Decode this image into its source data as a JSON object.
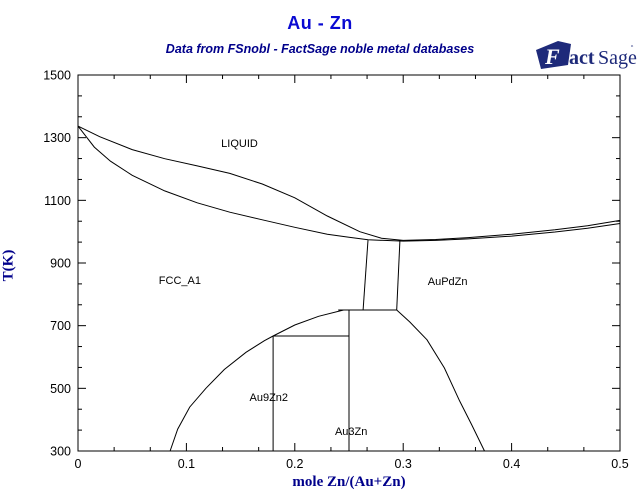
{
  "header": {
    "title": "Au - Zn",
    "subtitle": "Data from FSnobl - FactSage noble metal databases",
    "logo": {
      "f": "F",
      "act": "act",
      "sage": "Sage",
      "tm": "™"
    }
  },
  "colors": {
    "title_blue": "#0a0ad2",
    "navy": "#00008b",
    "logo_navy": "#1e2a7a",
    "line_black": "#000000"
  },
  "chart_data": {
    "type": "line",
    "title": "Au - Zn",
    "xlabel": "mole Zn/(Au+Zn)",
    "ylabel": "T(K)",
    "xlim": [
      0,
      0.5
    ],
    "ylim": [
      300,
      1500
    ],
    "grid": false,
    "x_major_ticks": [
      0,
      0.1,
      0.2,
      0.3,
      0.4,
      0.5
    ],
    "x_tick_labels": [
      "0",
      "0.1",
      "0.2",
      "0.3",
      "0.4",
      "0.5"
    ],
    "y_major_ticks": [
      300,
      500,
      700,
      900,
      1100,
      1300,
      1500
    ],
    "y_tick_labels": [
      "300",
      "500",
      "700",
      "900",
      "1100",
      "1300",
      "1500"
    ],
    "x_minor_per_major": 2,
    "y_minor_per_major": 2,
    "series": [
      {
        "name": "liquidus",
        "points": [
          [
            0,
            1337
          ],
          [
            0.02,
            1303
          ],
          [
            0.05,
            1262
          ],
          [
            0.08,
            1233
          ],
          [
            0.11,
            1210
          ],
          [
            0.14,
            1186
          ],
          [
            0.17,
            1152
          ],
          [
            0.2,
            1108
          ],
          [
            0.23,
            1050
          ],
          [
            0.26,
            1000
          ],
          [
            0.28,
            979
          ],
          [
            0.3,
            972
          ],
          [
            0.33,
            975
          ],
          [
            0.36,
            981
          ],
          [
            0.4,
            992
          ],
          [
            0.44,
            1006
          ],
          [
            0.47,
            1019
          ],
          [
            0.5,
            1036
          ]
        ]
      },
      {
        "name": "solidus",
        "points": [
          [
            0,
            1337
          ],
          [
            0.015,
            1270
          ],
          [
            0.03,
            1225
          ],
          [
            0.05,
            1180
          ],
          [
            0.08,
            1130
          ],
          [
            0.11,
            1092
          ],
          [
            0.14,
            1062
          ],
          [
            0.17,
            1038
          ],
          [
            0.2,
            1014
          ],
          [
            0.23,
            992
          ],
          [
            0.25,
            982
          ],
          [
            0.2675,
            974
          ],
          [
            0.3,
            970
          ],
          [
            0.33,
            972
          ],
          [
            0.36,
            977
          ],
          [
            0.4,
            986
          ],
          [
            0.44,
            999
          ],
          [
            0.47,
            1011
          ],
          [
            0.5,
            1026
          ]
        ]
      },
      {
        "name": "fcc-aupdzn-left-boundary",
        "points": [
          [
            0.2675,
            973
          ],
          [
            0.263,
            750
          ]
        ]
      },
      {
        "name": "fcc-aupdzn-right-boundary",
        "points": [
          [
            0.297,
            971
          ],
          [
            0.294,
            750
          ]
        ]
      },
      {
        "name": "peritectoid-750",
        "points": [
          [
            0.24,
            750
          ],
          [
            0.294,
            750
          ]
        ]
      },
      {
        "name": "fcc-solvus-left",
        "points": [
          [
            0.085,
            300
          ],
          [
            0.092,
            370
          ],
          [
            0.103,
            440
          ],
          [
            0.118,
            500
          ],
          [
            0.135,
            560
          ],
          [
            0.155,
            615
          ],
          [
            0.172,
            652
          ],
          [
            0.18,
            667
          ],
          [
            0.2,
            702
          ],
          [
            0.222,
            730
          ],
          [
            0.245,
            750
          ]
        ]
      },
      {
        "name": "fcc-solvus-right",
        "points": [
          [
            0.294,
            750
          ],
          [
            0.306,
            712
          ],
          [
            0.322,
            655
          ],
          [
            0.338,
            565
          ],
          [
            0.352,
            460
          ],
          [
            0.363,
            385
          ],
          [
            0.375,
            300
          ]
        ]
      },
      {
        "name": "au9zn2-compound",
        "points": [
          [
            0.18,
            300
          ],
          [
            0.18,
            667
          ]
        ]
      },
      {
        "name": "eutectoid-670",
        "points": [
          [
            0.18,
            667
          ],
          [
            0.25,
            667
          ]
        ]
      },
      {
        "name": "au3zn-compound",
        "points": [
          [
            0.25,
            300
          ],
          [
            0.25,
            750
          ]
        ]
      }
    ],
    "phase_labels": [
      {
        "text": "LIQUID",
        "x": 0.149,
        "T": 1283
      },
      {
        "text": "FCC_A1",
        "x": 0.094,
        "T": 846
      },
      {
        "text": "AuPdZn",
        "x": 0.341,
        "T": 843
      },
      {
        "text": "Au9Zn2",
        "x": 0.176,
        "T": 472
      },
      {
        "text": "Au3Zn",
        "x": 0.252,
        "T": 364
      }
    ],
    "legend": null
  }
}
